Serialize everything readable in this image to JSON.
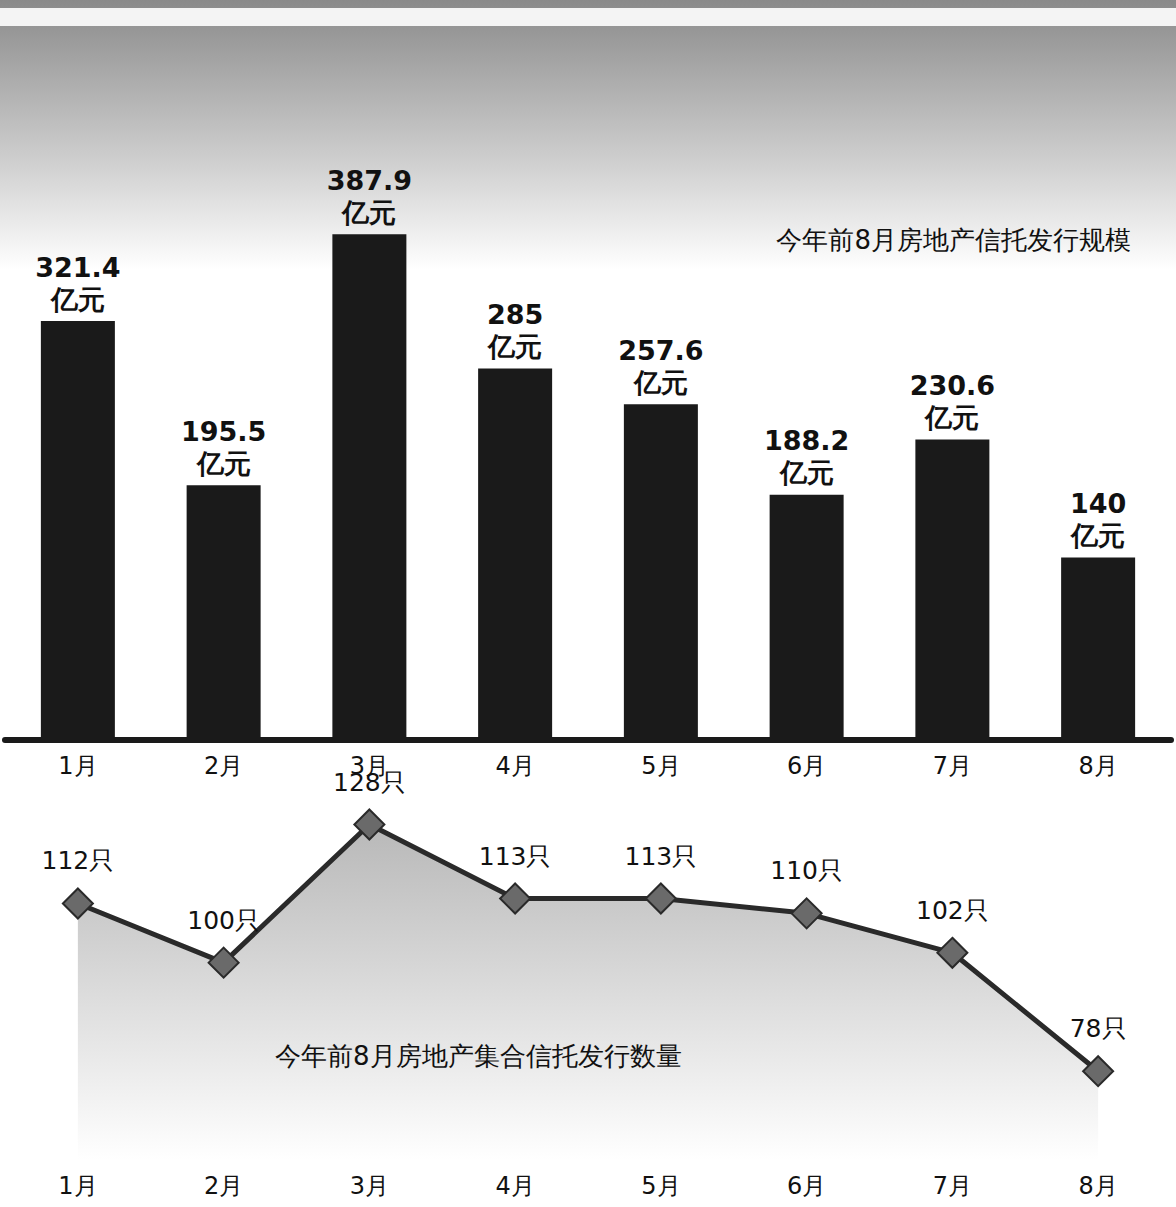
{
  "chart_data": [
    {
      "type": "bar",
      "title": "今年前8月房地产信托发行规模",
      "categories": [
        "1月",
        "2月",
        "3月",
        "4月",
        "5月",
        "6月",
        "7月",
        "8月"
      ],
      "values": [
        321.4,
        195.5,
        387.9,
        285,
        257.6,
        188.2,
        230.6,
        140
      ],
      "value_labels": [
        "321.4亿元",
        "195.5亿元",
        "387.9亿元",
        "285亿元",
        "257.6亿元",
        "188.2亿元",
        "230.6亿元",
        "140亿元"
      ],
      "color": "#1a1a1a",
      "ylim": [
        0,
        560
      ],
      "grid": false,
      "data_labels": true,
      "tick_labels": "x"
    },
    {
      "type": "line",
      "title": "今年前8月房地产集合信托发行数量",
      "categories": [
        "1月",
        "2月",
        "3月",
        "4月",
        "5月",
        "6月",
        "7月",
        "8月"
      ],
      "values": [
        112,
        100,
        128,
        113,
        113,
        110,
        102,
        78
      ],
      "value_labels": [
        "112只",
        "100只",
        "128只",
        "113只",
        "113只",
        "110只",
        "102只",
        "78只"
      ],
      "color": "#2a2a2a",
      "marker": "diamond",
      "ylim": [
        60,
        135
      ],
      "grid": false,
      "data_labels": true,
      "tick_labels": "x"
    }
  ]
}
